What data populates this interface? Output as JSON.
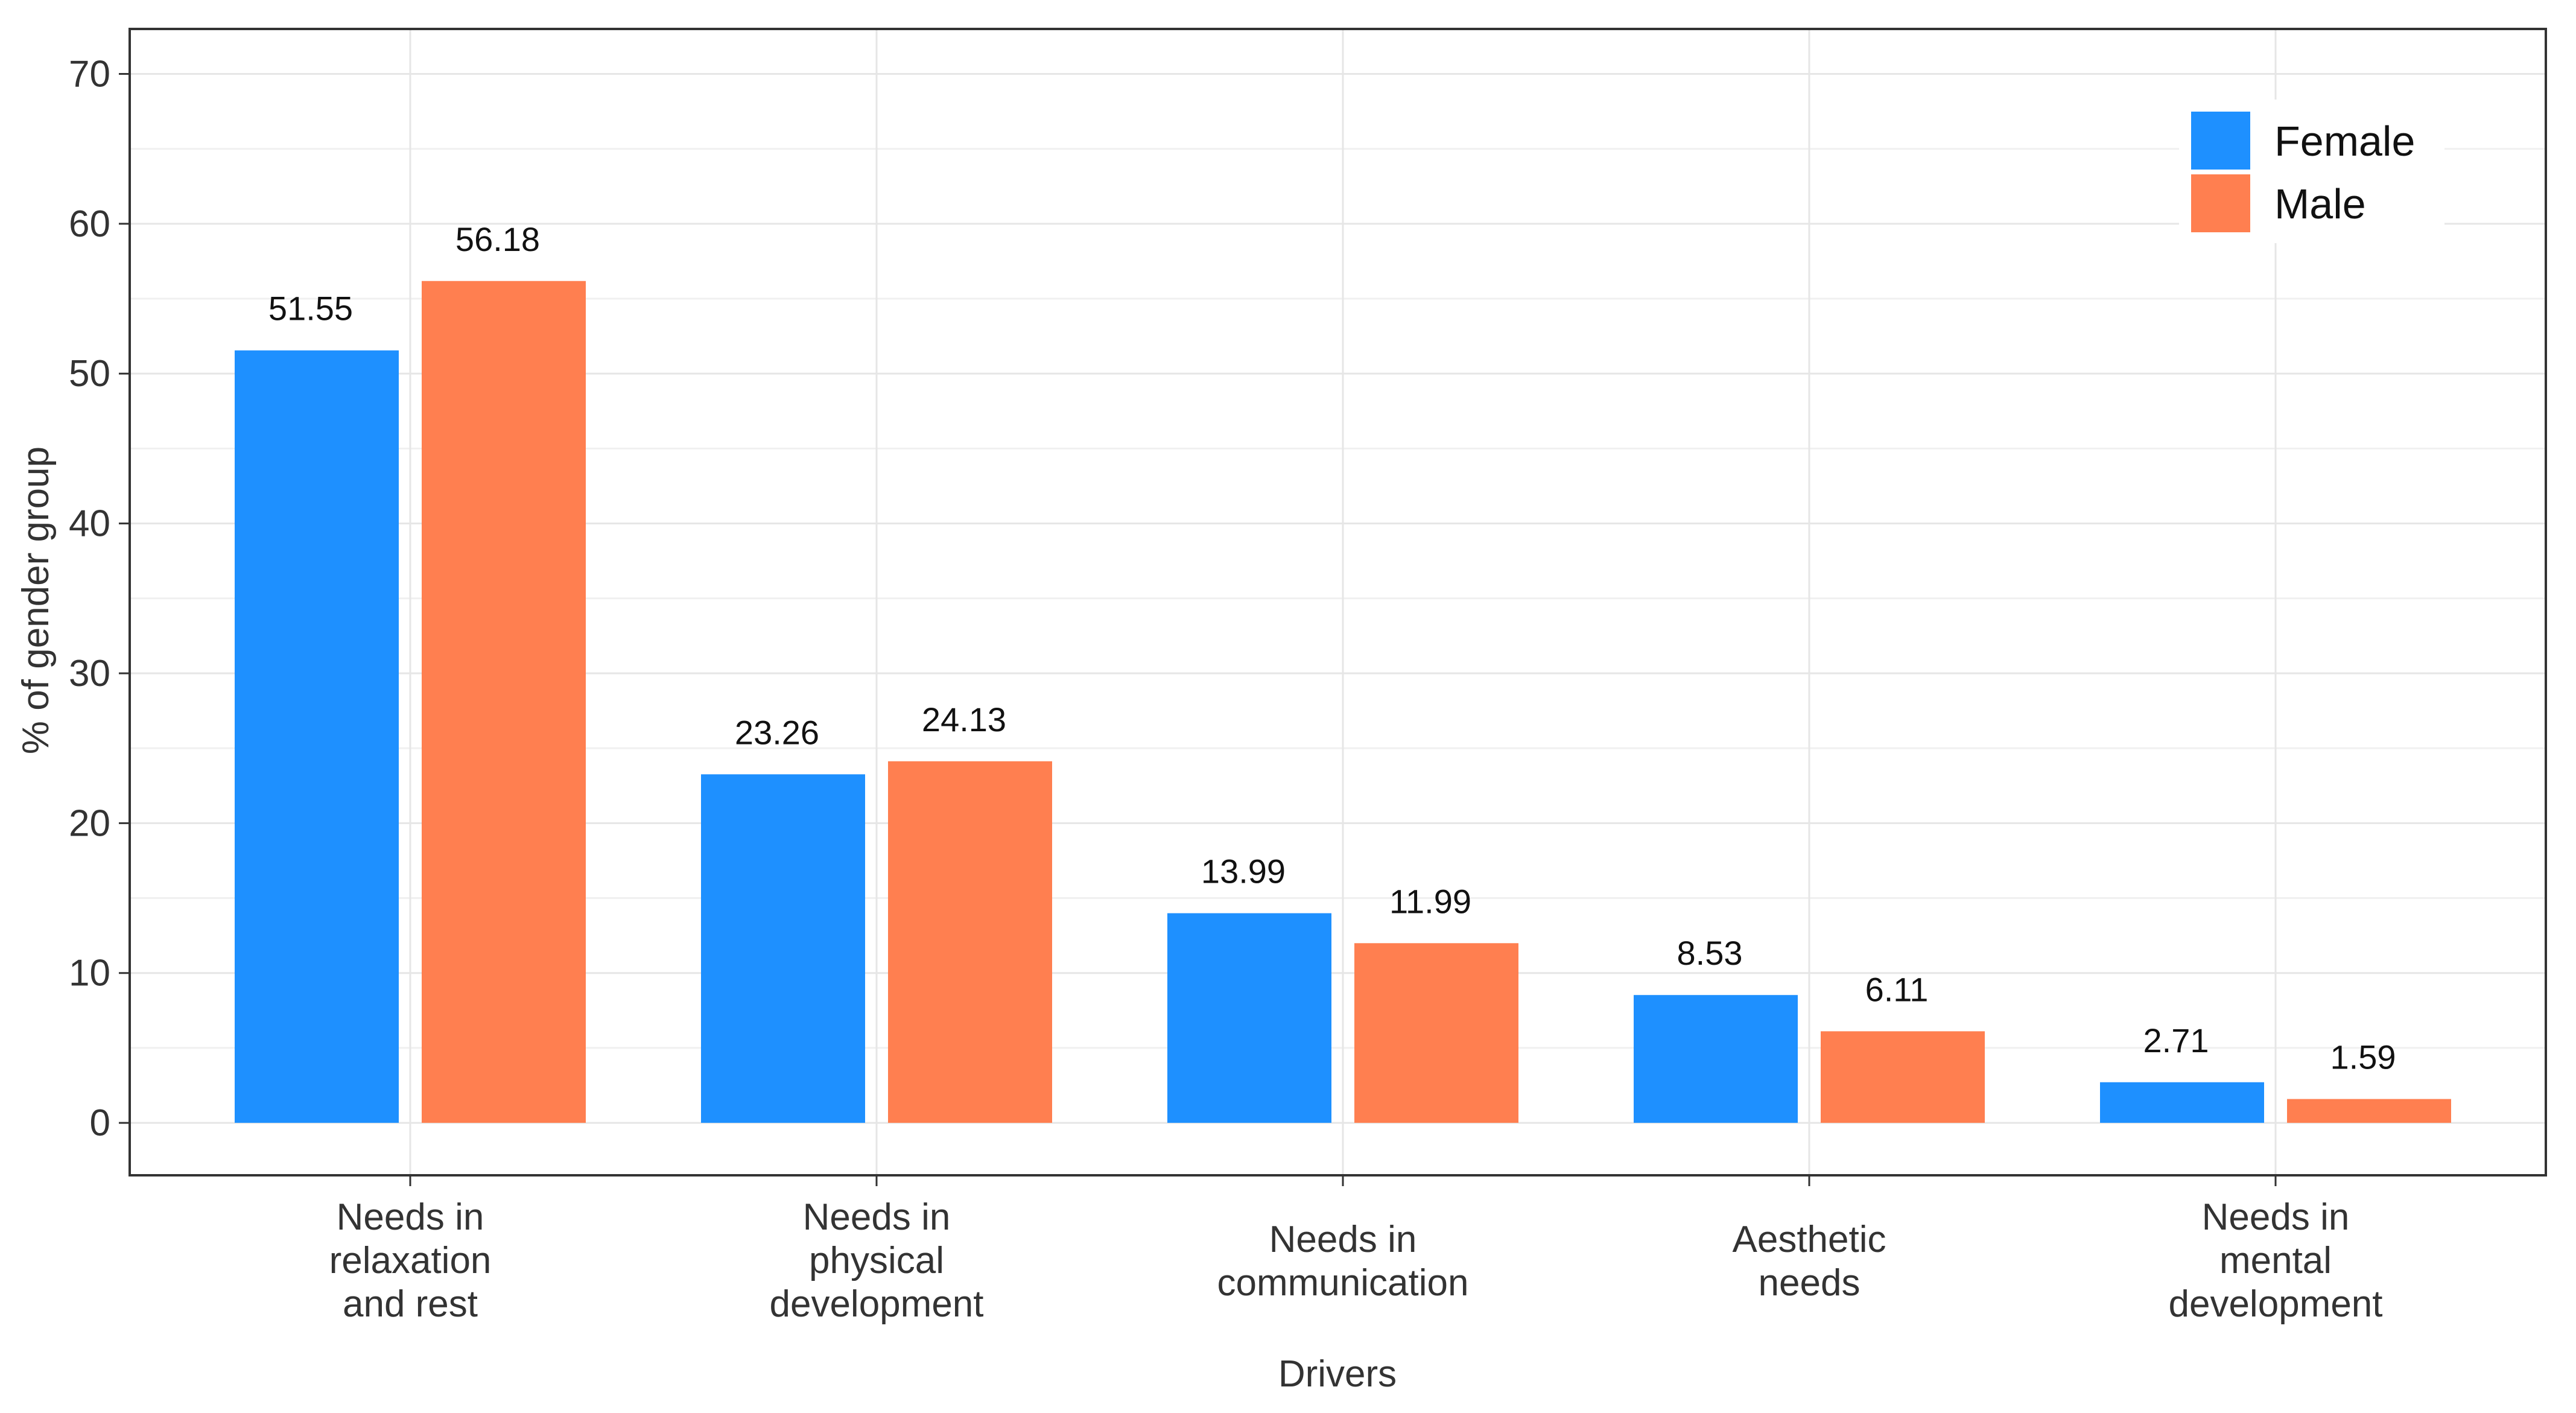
{
  "chart_data": {
    "type": "bar",
    "title": "",
    "xlabel": "Drivers",
    "ylabel": "% of gender group",
    "ylim": [
      -3.5,
      73
    ],
    "yticks": [
      0,
      10,
      20,
      30,
      40,
      50,
      60,
      70
    ],
    "grid": true,
    "legend_position": "top-right",
    "categories": [
      [
        "Needs in",
        "relaxation",
        "and rest"
      ],
      [
        "Needs in",
        "physical",
        "development"
      ],
      [
        "Needs in",
        "communication"
      ],
      [
        "Aesthetic",
        "needs"
      ],
      [
        "Needs in",
        "mental",
        "development"
      ]
    ],
    "series": [
      {
        "name": "Female",
        "color": "#1e90ff",
        "values": [
          51.55,
          23.26,
          13.99,
          8.53,
          2.71
        ]
      },
      {
        "name": "Male",
        "color": "#ff7f50",
        "values": [
          56.18,
          24.13,
          11.99,
          6.11,
          1.59
        ]
      }
    ]
  }
}
